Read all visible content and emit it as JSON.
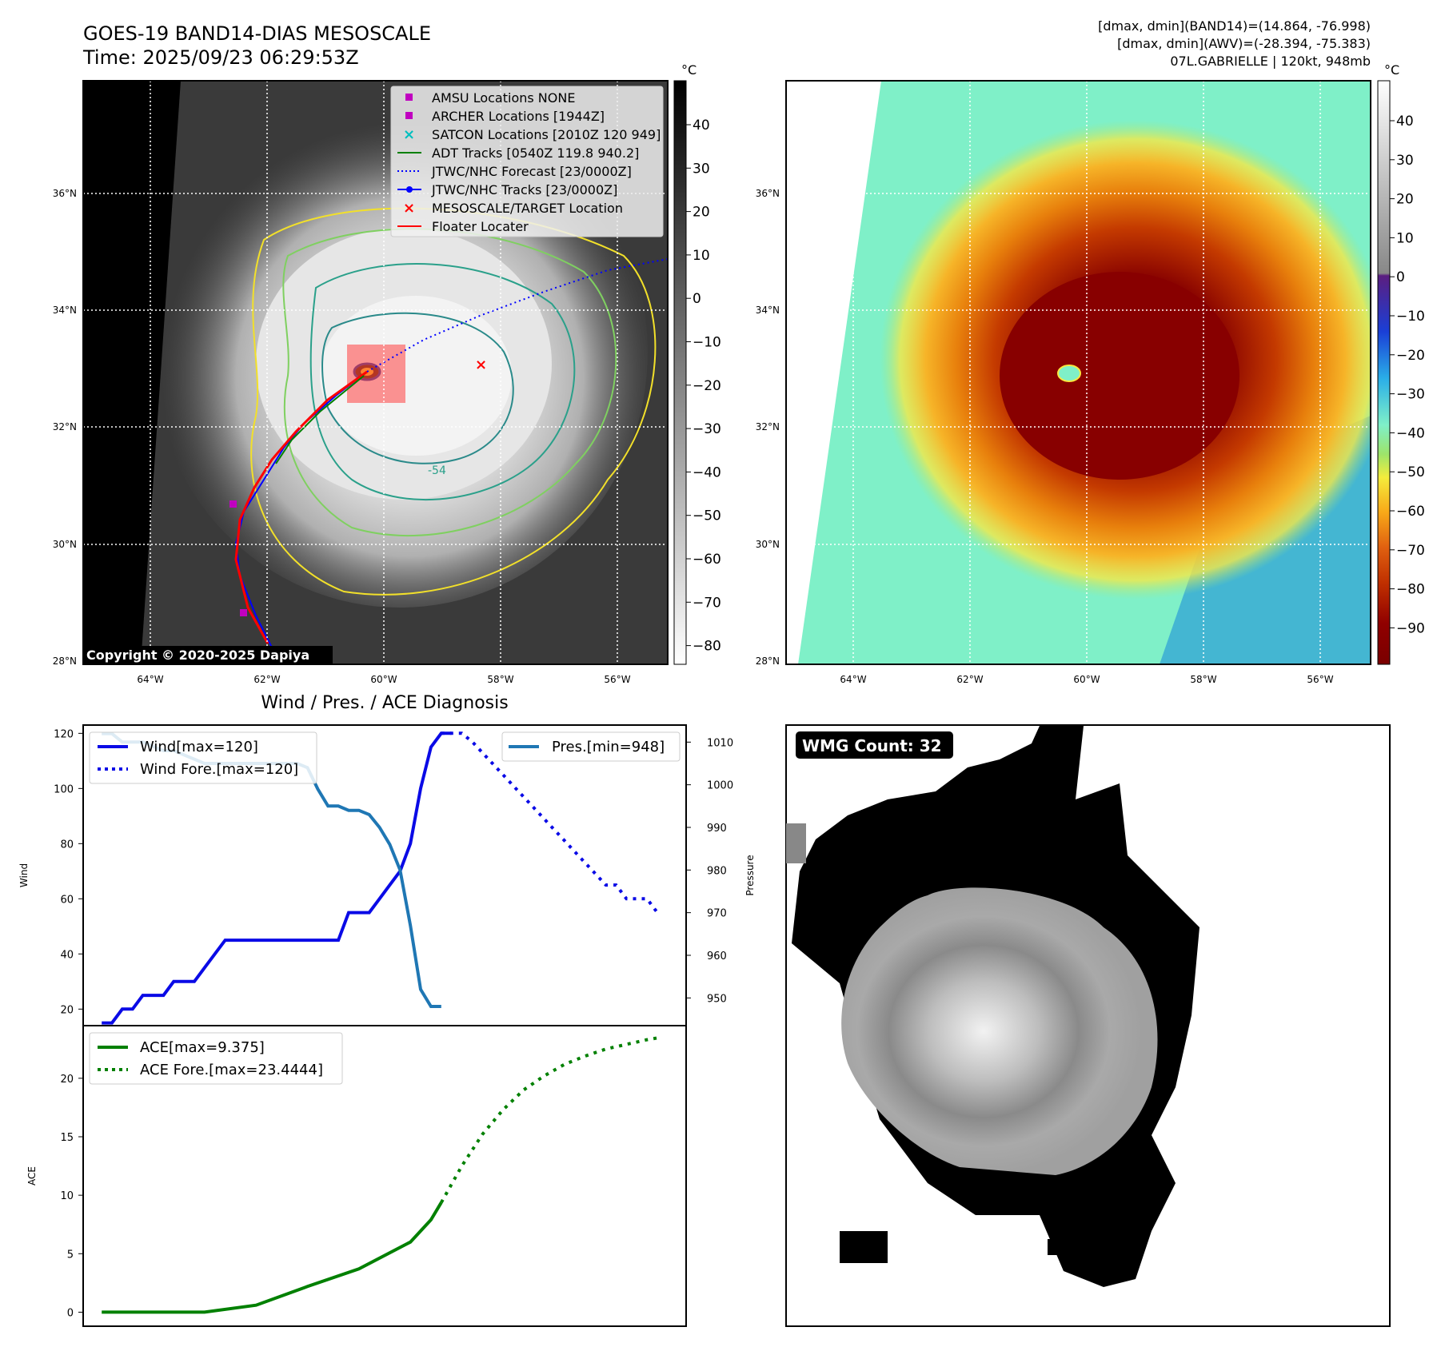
{
  "header": {
    "title_line1": "GOES-19 BAND14-DIAS MESOSCALE",
    "title_line2": "Time: 2025/09/23 06:29:53Z",
    "stats_line1": "[dmax, dmin](BAND14)=(14.864, -76.998)",
    "stats_line2": "[dmax, dmin](AWV)=(-28.394, -75.383)",
    "stats_line3": "07L.GABRIELLE | 120kt, 948mb"
  },
  "map": {
    "lat_labels": [
      "36°N",
      "34°N",
      "32°N",
      "30°N",
      "28°N"
    ],
    "lon_labels": [
      "64°W",
      "62°W",
      "60°W",
      "58°W",
      "56°W"
    ],
    "copyright": "Copyright © 2020-2025 Dapiya",
    "contour_label": "-54",
    "legend": [
      {
        "label": "AMSU Locations NONE",
        "marker": "square",
        "color": "#c000c0"
      },
      {
        "label": "ARCHER Locations [1944Z]",
        "marker": "square",
        "color": "#c000c0"
      },
      {
        "label": "SATCON Locations [2010Z 120 949]",
        "marker": "x",
        "color": "#00bfbf"
      },
      {
        "label": "ADT Tracks [0540Z 119.8 940.2]",
        "marker": "line",
        "color": "#008000"
      },
      {
        "label": "JTWC/NHC Forecast [23/0000Z]",
        "marker": "dotted",
        "color": "#0000ff"
      },
      {
        "label": "JTWC/NHC Tracks [23/0000Z]",
        "marker": "line-dot",
        "color": "#0000ff"
      },
      {
        "label": "MESOSCALE/TARGET Location",
        "marker": "x",
        "color": "#ff0000"
      },
      {
        "label": "Floater Locater",
        "marker": "line",
        "color": "#ff0000"
      }
    ]
  },
  "colorbar_gray": {
    "unit": "°C",
    "ticks": [
      "40",
      "30",
      "20",
      "10",
      "0",
      "−10",
      "−20",
      "−30",
      "−40",
      "−50",
      "−60",
      "−70",
      "−80"
    ]
  },
  "colorbar_color": {
    "unit": "°C",
    "ticks": [
      "40",
      "30",
      "20",
      "10",
      "0",
      "−10",
      "−20",
      "−30",
      "−40",
      "−50",
      "−60",
      "−70",
      "−80",
      "−90"
    ]
  },
  "wmg": {
    "label": "WMG Count: 32"
  },
  "colors": {
    "wind": "#0a0ae6",
    "pressure": "#1f77b4",
    "ace": "#008000"
  },
  "chart_data": [
    {
      "type": "line",
      "title": "Wind / Pres. / ACE Diagnosis",
      "ylabel": "Wind",
      "y2label": "Pressure",
      "ylim": [
        14,
        123
      ],
      "y2lim": [
        943.5,
        1014
      ],
      "yticks": [
        20,
        40,
        60,
        80,
        100,
        120
      ],
      "y2ticks": [
        950,
        960,
        970,
        980,
        990,
        1000,
        1010
      ],
      "series": [
        {
          "name": "Wind[max=120]",
          "axis": "left",
          "style": "solid",
          "x": [
            0,
            1,
            2,
            3,
            4,
            5,
            6,
            7,
            8,
            9,
            10,
            11,
            12,
            13,
            14,
            15,
            16,
            17,
            18,
            19,
            20,
            21,
            22,
            23,
            24,
            25,
            26,
            27,
            28,
            29,
            30,
            31,
            32,
            33,
            34
          ],
          "values": [
            15,
            15,
            20,
            20,
            25,
            25,
            25,
            30,
            30,
            30,
            35,
            40,
            45,
            45,
            45,
            45,
            45,
            45,
            45,
            45,
            45,
            45,
            45,
            45,
            55,
            55,
            55,
            60,
            65,
            70,
            80,
            100,
            115,
            120,
            120
          ]
        },
        {
          "name": "Wind Fore.[max=120]",
          "axis": "left",
          "style": "dotted",
          "x": [
            33,
            34,
            35,
            36,
            37,
            38,
            39,
            40,
            41,
            42,
            43,
            44,
            45,
            46,
            47,
            48,
            49,
            50,
            51,
            52,
            53,
            54
          ],
          "values": [
            120,
            120,
            120,
            117,
            113,
            109,
            105,
            101,
            97,
            93,
            89,
            85,
            81,
            77,
            73,
            69,
            65,
            65,
            60,
            60,
            60,
            55
          ]
        },
        {
          "name": "Pres.[min=948]",
          "axis": "right",
          "style": "solid",
          "x": [
            0,
            1,
            2,
            3,
            4,
            5,
            6,
            7,
            8,
            9,
            10,
            11,
            12,
            13,
            14,
            15,
            16,
            17,
            18,
            19,
            20,
            21,
            22,
            23,
            24,
            25,
            26,
            27,
            28,
            29,
            30,
            31,
            32,
            33
          ],
          "values": [
            1012,
            1012,
            1010,
            1010,
            1010,
            1009,
            1008,
            1008,
            1007,
            1006,
            1005,
            1005,
            1005,
            1005,
            1005,
            1005,
            1005,
            1005,
            1005,
            1005,
            1004,
            999,
            995,
            995,
            994,
            994,
            993,
            990,
            986,
            980,
            967,
            952,
            948,
            948
          ]
        }
      ]
    },
    {
      "type": "line",
      "ylabel": "ACE",
      "ylim": [
        -1.2,
        24.5
      ],
      "yticks": [
        0,
        5,
        10,
        15,
        20
      ],
      "series": [
        {
          "name": "ACE[max=9.375]",
          "style": "solid",
          "x": [
            0,
            5,
            10,
            15,
            20,
            25,
            30,
            32,
            33
          ],
          "values": [
            0,
            0,
            0,
            0.6,
            2.2,
            3.7,
            6.0,
            7.9,
            9.375
          ]
        },
        {
          "name": "ACE Fore.[max=23.4444]",
          "style": "dotted",
          "x": [
            33,
            35,
            37,
            39,
            41,
            43,
            45,
            47,
            49,
            51,
            53,
            54
          ],
          "values": [
            9.375,
            12.5,
            15.2,
            17.3,
            19.0,
            20.2,
            21.2,
            21.9,
            22.5,
            22.9,
            23.3,
            23.4444
          ]
        }
      ]
    }
  ]
}
